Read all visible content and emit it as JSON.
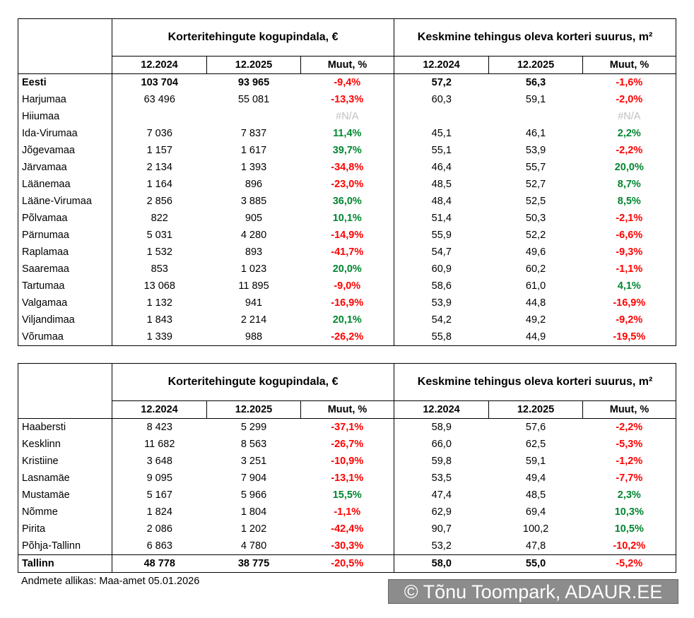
{
  "tables": [
    {
      "group_headers": [
        "Korteritehingute kogupindala, €",
        "Keskmine tehingus oleva korteri suurus, m²"
      ],
      "subheaders": [
        "12.2024",
        "12.2025",
        "Muut, %",
        "12.2024",
        "12.2025",
        "Muut, %"
      ],
      "rows": [
        [
          "Eesti",
          "103 704",
          "93 965",
          "-9,4%",
          "57,2",
          "56,3",
          "-1,6%"
        ],
        [
          "Harjumaa",
          "63 496",
          "55 081",
          "-13,3%",
          "60,3",
          "59,1",
          "-2,0%"
        ],
        [
          "Hiiumaa",
          null,
          null,
          "#N/A",
          null,
          null,
          "#N/A"
        ],
        [
          "Ida-Virumaa",
          "7 036",
          "7 837",
          "11,4%",
          "45,1",
          "46,1",
          "2,2%"
        ],
        [
          "Jõgevamaa",
          "1 157",
          "1 617",
          "39,7%",
          "55,1",
          "53,9",
          "-2,2%"
        ],
        [
          "Järvamaa",
          "2 134",
          "1 393",
          "-34,8%",
          "46,4",
          "55,7",
          "20,0%"
        ],
        [
          "Läänemaa",
          "1 164",
          "896",
          "-23,0%",
          "48,5",
          "52,7",
          "8,7%"
        ],
        [
          "Lääne-Virumaa",
          "2 856",
          "3 885",
          "36,0%",
          "48,4",
          "52,5",
          "8,5%"
        ],
        [
          "Põlvamaa",
          "822",
          "905",
          "10,1%",
          "51,4",
          "50,3",
          "-2,1%"
        ],
        [
          "Pärnumaa",
          "5 031",
          "4 280",
          "-14,9%",
          "55,9",
          "52,2",
          "-6,6%"
        ],
        [
          "Raplamaa",
          "1 532",
          "893",
          "-41,7%",
          "54,7",
          "49,6",
          "-9,3%"
        ],
        [
          "Saaremaa",
          "853",
          "1 023",
          "20,0%",
          "60,9",
          "60,2",
          "-1,1%"
        ],
        [
          "Tartumaa",
          "13 068",
          "11 895",
          "-9,0%",
          "58,6",
          "61,0",
          "4,1%"
        ],
        [
          "Valgamaa",
          "1 132",
          "941",
          "-16,9%",
          "53,9",
          "44,8",
          "-16,9%"
        ],
        [
          "Viljandimaa",
          "1 843",
          "2 214",
          "20,1%",
          "54,2",
          "49,2",
          "-9,2%"
        ],
        [
          "Võrumaa",
          "1 339",
          "988",
          "-26,2%",
          "55,8",
          "44,9",
          "-19,5%"
        ]
      ]
    },
    {
      "group_headers": [
        "Korteritehingute kogupindala, €",
        "Keskmine tehingus oleva korteri suurus, m²"
      ],
      "subheaders": [
        "12.2024",
        "12.2025",
        "Muut, %",
        "12.2024",
        "12.2025",
        "Muut, %"
      ],
      "rows": [
        [
          "Haabersti",
          "8 423",
          "5 299",
          "-37,1%",
          "58,9",
          "57,6",
          "-2,2%"
        ],
        [
          "Kesklinn",
          "11 682",
          "8 563",
          "-26,7%",
          "66,0",
          "62,5",
          "-5,3%"
        ],
        [
          "Kristiine",
          "3 648",
          "3 251",
          "-10,9%",
          "59,8",
          "59,1",
          "-1,2%"
        ],
        [
          "Lasnamäe",
          "9 095",
          "7 904",
          "-13,1%",
          "53,5",
          "49,4",
          "-7,7%"
        ],
        [
          "Mustamäe",
          "5 167",
          "5 966",
          "15,5%",
          "47,4",
          "48,5",
          "2,3%"
        ],
        [
          "Nõmme",
          "1 824",
          "1 804",
          "-1,1%",
          "62,9",
          "69,4",
          "10,3%"
        ],
        [
          "Pirita",
          "2 086",
          "1 202",
          "-42,4%",
          "90,7",
          "100,2",
          "10,5%"
        ],
        [
          "Põhja-Tallinn",
          "6 863",
          "4 780",
          "-30,3%",
          "53,2",
          "47,8",
          "-10,2%"
        ],
        [
          "Tallinn",
          "48 778",
          "38 775",
          "-20,5%",
          "58,0",
          "55,0",
          "-5,2%"
        ]
      ]
    }
  ],
  "source": "Andmete allikas: Maa-amet 05.01.2026",
  "watermark": "© Tõnu Toompark, ADAUR.EE"
}
